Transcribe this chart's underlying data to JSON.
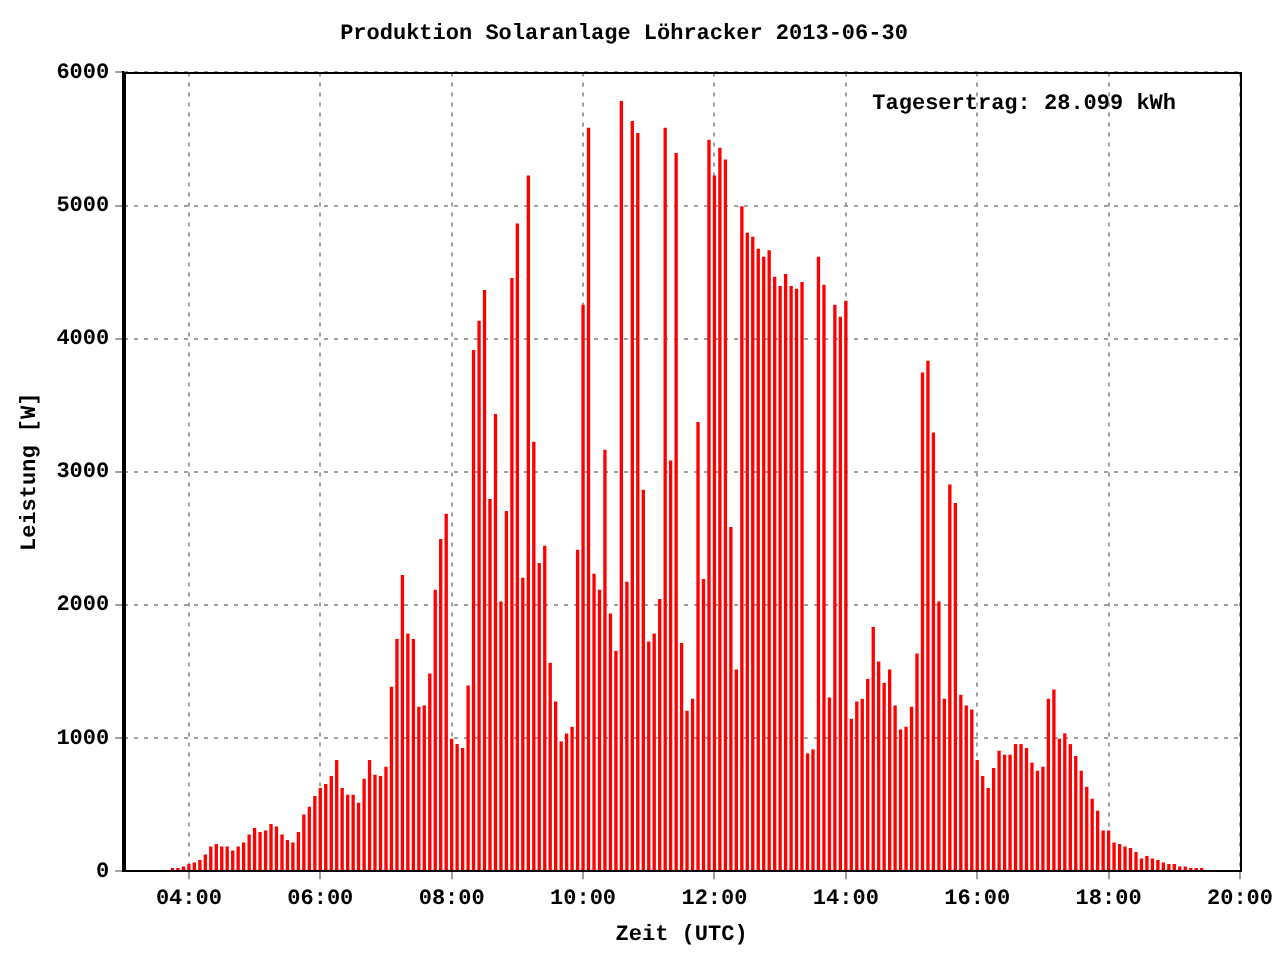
{
  "chart_data": {
    "type": "bar",
    "title": "Produktion Solaranlage Löhracker 2013-06-30",
    "xlabel": "Zeit (UTC)",
    "ylabel": "Leistung [W]",
    "annotations": [
      "Tagesertrag: 28.099 kWh"
    ],
    "x": [
      3.75,
      3.833,
      3.917,
      4,
      4.083,
      4.167,
      4.25,
      4.333,
      4.417,
      4.5,
      4.583,
      4.667,
      4.75,
      4.833,
      4.917,
      5,
      5.083,
      5.167,
      5.25,
      5.333,
      5.417,
      5.5,
      5.583,
      5.667,
      5.75,
      5.833,
      5.917,
      6,
      6.083,
      6.167,
      6.25,
      6.333,
      6.417,
      6.5,
      6.583,
      6.667,
      6.75,
      6.833,
      6.917,
      7,
      7.083,
      7.167,
      7.25,
      7.333,
      7.417,
      7.5,
      7.583,
      7.667,
      7.75,
      7.833,
      7.917,
      8,
      8.083,
      8.167,
      8.25,
      8.333,
      8.417,
      8.5,
      8.583,
      8.667,
      8.75,
      8.833,
      8.917,
      9,
      9.083,
      9.167,
      9.25,
      9.333,
      9.417,
      9.5,
      9.583,
      9.667,
      9.75,
      9.833,
      9.917,
      10,
      10.083,
      10.167,
      10.25,
      10.333,
      10.417,
      10.5,
      10.583,
      10.667,
      10.75,
      10.833,
      10.917,
      11,
      11.083,
      11.167,
      11.25,
      11.333,
      11.417,
      11.5,
      11.583,
      11.667,
      11.75,
      11.833,
      11.917,
      12,
      12.083,
      12.167,
      12.25,
      12.333,
      12.417,
      12.5,
      12.583,
      12.667,
      12.75,
      12.833,
      12.917,
      13,
      13.083,
      13.167,
      13.25,
      13.333,
      13.417,
      13.5,
      13.583,
      13.667,
      13.75,
      13.833,
      13.917,
      14,
      14.083,
      14.167,
      14.25,
      14.333,
      14.417,
      14.5,
      14.583,
      14.667,
      14.75,
      14.833,
      14.917,
      15,
      15.083,
      15.167,
      15.25,
      15.333,
      15.417,
      15.5,
      15.583,
      15.667,
      15.75,
      15.833,
      15.917,
      16,
      16.083,
      16.167,
      16.25,
      16.333,
      16.417,
      16.5,
      16.583,
      16.667,
      16.75,
      16.833,
      16.917,
      17,
      17.083,
      17.167,
      17.25,
      17.333,
      17.417,
      17.5,
      17.583,
      17.667,
      17.75,
      17.833,
      17.917,
      18,
      18.083,
      18.167,
      18.25,
      18.333,
      18.417,
      18.5,
      18.583,
      18.667,
      18.75,
      18.833,
      18.917,
      19,
      19.083,
      19.167,
      19.25,
      19.333,
      19.417
    ],
    "values": [
      20,
      20,
      30,
      50,
      60,
      80,
      120,
      180,
      200,
      180,
      180,
      150,
      180,
      210,
      270,
      320,
      290,
      300,
      350,
      330,
      270,
      230,
      210,
      290,
      420,
      480,
      560,
      620,
      650,
      710,
      830,
      620,
      570,
      570,
      510,
      690,
      830,
      720,
      710,
      780,
      1380,
      1740,
      2220,
      1780,
      1740,
      1230,
      1240,
      1480,
      2110,
      2490,
      2680,
      990,
      950,
      920,
      1390,
      3910,
      4130,
      4360,
      2790,
      3430,
      2020,
      2700,
      4450,
      4860,
      2200,
      5220,
      3220,
      2310,
      2440,
      1560,
      1270,
      970,
      1030,
      1080,
      2410,
      4250,
      5580,
      2230,
      2110,
      3160,
      1930,
      1650,
      5780,
      2170,
      5630,
      5540,
      2860,
      1720,
      1780,
      2040,
      5580,
      3080,
      5390,
      1710,
      1200,
      1290,
      3370,
      2190,
      5490,
      5220,
      5430,
      5340,
      2580,
      1510,
      4990,
      4790,
      4760,
      4670,
      4610,
      4660,
      4460,
      4390,
      4480,
      4390,
      4370,
      4420,
      880,
      910,
      4610,
      4400,
      1300,
      4250,
      4160,
      4280,
      1140,
      1270,
      1290,
      1440,
      1830,
      1570,
      1410,
      1510,
      1240,
      1060,
      1080,
      1230,
      1630,
      3740,
      3830,
      3290,
      2020,
      1290,
      2900,
      2760,
      1320,
      1240,
      1210,
      830,
      710,
      620,
      770,
      900,
      870,
      870,
      950,
      950,
      920,
      810,
      750,
      780,
      1290,
      1360,
      990,
      1030,
      950,
      860,
      750,
      630,
      540,
      450,
      300,
      300,
      210,
      200,
      180,
      170,
      140,
      90,
      110,
      90,
      80,
      60,
      50,
      50,
      30,
      30,
      20,
      20,
      20
    ],
    "color": "#ff0000",
    "xlim": [
      3,
      20
    ],
    "xticks": [
      {
        "value": 4,
        "label": "04:00"
      },
      {
        "value": 6,
        "label": "06:00"
      },
      {
        "value": 8,
        "label": "08:00"
      },
      {
        "value": 10,
        "label": "10:00"
      },
      {
        "value": 12,
        "label": "12:00"
      },
      {
        "value": 14,
        "label": "14:00"
      },
      {
        "value": 16,
        "label": "16:00"
      },
      {
        "value": 18,
        "label": "18:00"
      },
      {
        "value": 20,
        "label": "20:00"
      }
    ],
    "ylim": [
      0,
      6000
    ],
    "yticks": [
      0,
      1000,
      2000,
      3000,
      4000,
      5000,
      6000
    ],
    "grid": true,
    "legend": false
  }
}
